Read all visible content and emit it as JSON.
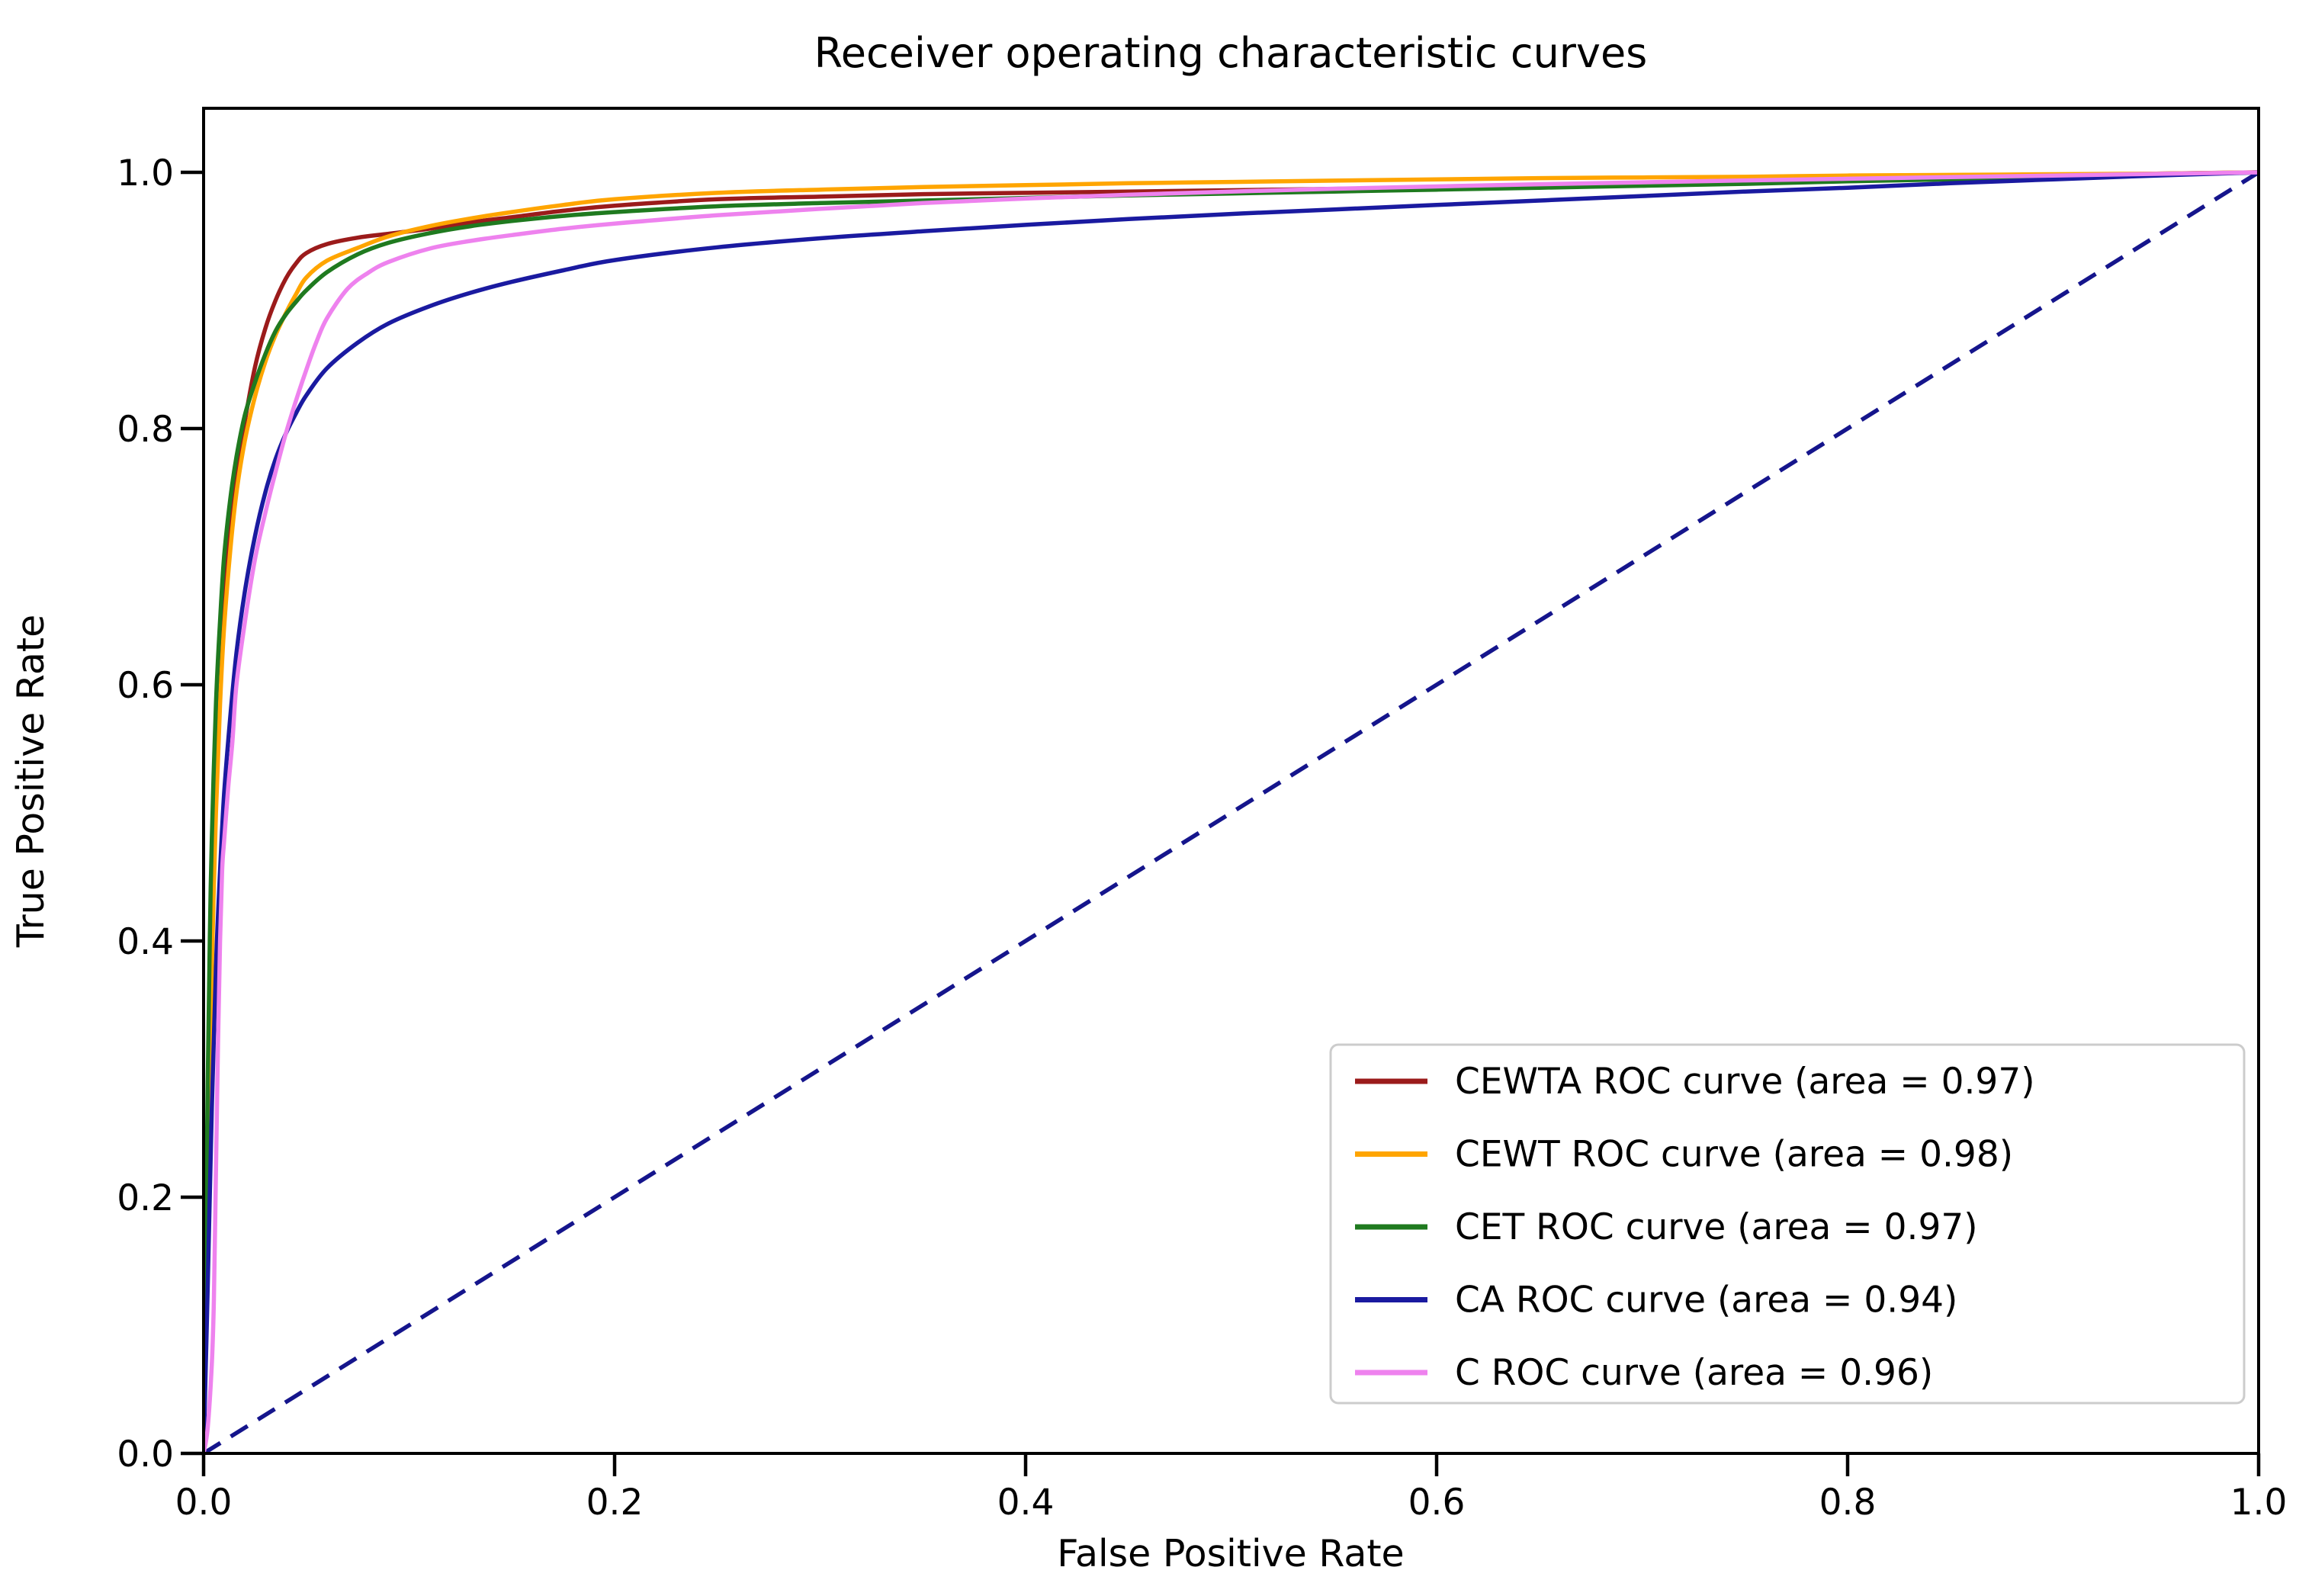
{
  "chart_data": {
    "type": "line",
    "title": "Receiver operating characteristic curves",
    "xlabel": "False Positive Rate",
    "ylabel": "True Positive Rate",
    "xlim": [
      0,
      1
    ],
    "ylim": [
      0,
      1.05
    ],
    "xticks": [
      0.0,
      0.2,
      0.4,
      0.6,
      0.8,
      1.0
    ],
    "yticks": [
      0.0,
      0.2,
      0.4,
      0.6,
      0.8,
      1.0
    ],
    "grid": false,
    "background": "#ffffff",
    "text_color": "#000000",
    "legend": {
      "position": "lower right",
      "border_color": "#cccccc",
      "fill": "#ffffff"
    },
    "reference_line": {
      "from": [
        0,
        0
      ],
      "to": [
        1,
        1
      ],
      "style": "dashed",
      "color": "#15158c"
    },
    "series": [
      {
        "name": "CEWTA ROC curve (area = 0.97)",
        "auc": 0.97,
        "color": "#9b1b1b",
        "points": [
          [
            0,
            0
          ],
          [
            0.001,
            0.12
          ],
          [
            0.002,
            0.25
          ],
          [
            0.003,
            0.36
          ],
          [
            0.004,
            0.44
          ],
          [
            0.006,
            0.55
          ],
          [
            0.008,
            0.62
          ],
          [
            0.01,
            0.675
          ],
          [
            0.013,
            0.725
          ],
          [
            0.016,
            0.765
          ],
          [
            0.02,
            0.805
          ],
          [
            0.025,
            0.848
          ],
          [
            0.03,
            0.878
          ],
          [
            0.035,
            0.9
          ],
          [
            0.04,
            0.917
          ],
          [
            0.045,
            0.929
          ],
          [
            0.05,
            0.937
          ],
          [
            0.06,
            0.944
          ],
          [
            0.075,
            0.949
          ],
          [
            0.09,
            0.952
          ],
          [
            0.11,
            0.956
          ],
          [
            0.13,
            0.961
          ],
          [
            0.15,
            0.965
          ],
          [
            0.175,
            0.97
          ],
          [
            0.2,
            0.974
          ],
          [
            0.25,
            0.979
          ],
          [
            0.3,
            0.981
          ],
          [
            0.35,
            0.983
          ],
          [
            0.4,
            0.984
          ],
          [
            0.45,
            0.985
          ],
          [
            0.5,
            0.986
          ],
          [
            0.55,
            0.987
          ],
          [
            0.6,
            0.9885
          ],
          [
            0.65,
            0.99
          ],
          [
            0.7,
            0.9915
          ],
          [
            0.75,
            0.993
          ],
          [
            0.8,
            0.9945
          ],
          [
            0.85,
            0.996
          ],
          [
            0.9,
            0.9975
          ],
          [
            0.95,
            0.999
          ],
          [
            1,
            1
          ]
        ]
      },
      {
        "name": "CEWT ROC curve (area = 0.98)",
        "auc": 0.98,
        "color": "#ffa500",
        "points": [
          [
            0,
            0
          ],
          [
            0.001,
            0.09
          ],
          [
            0.002,
            0.2
          ],
          [
            0.003,
            0.3
          ],
          [
            0.004,
            0.38
          ],
          [
            0.006,
            0.5
          ],
          [
            0.008,
            0.585
          ],
          [
            0.01,
            0.645
          ],
          [
            0.013,
            0.705
          ],
          [
            0.016,
            0.75
          ],
          [
            0.02,
            0.79
          ],
          [
            0.025,
            0.825
          ],
          [
            0.03,
            0.852
          ],
          [
            0.035,
            0.873
          ],
          [
            0.04,
            0.89
          ],
          [
            0.045,
            0.905
          ],
          [
            0.05,
            0.918
          ],
          [
            0.06,
            0.931
          ],
          [
            0.075,
            0.941
          ],
          [
            0.09,
            0.95
          ],
          [
            0.11,
            0.958
          ],
          [
            0.13,
            0.964
          ],
          [
            0.15,
            0.969
          ],
          [
            0.175,
            0.9745
          ],
          [
            0.2,
            0.979
          ],
          [
            0.25,
            0.984
          ],
          [
            0.3,
            0.9865
          ],
          [
            0.35,
            0.9885
          ],
          [
            0.4,
            0.99
          ],
          [
            0.45,
            0.9915
          ],
          [
            0.5,
            0.9925
          ],
          [
            0.55,
            0.9935
          ],
          [
            0.6,
            0.9945
          ],
          [
            0.65,
            0.9955
          ],
          [
            0.7,
            0.996
          ],
          [
            0.75,
            0.9965
          ],
          [
            0.8,
            0.9975
          ],
          [
            0.85,
            0.998
          ],
          [
            0.9,
            0.9985
          ],
          [
            0.95,
            0.999
          ],
          [
            1,
            1
          ]
        ]
      },
      {
        "name": "CET ROC curve (area = 0.97)",
        "auc": 0.97,
        "color": "#1f7a1f",
        "points": [
          [
            0,
            0
          ],
          [
            0.001,
            0.14
          ],
          [
            0.002,
            0.29
          ],
          [
            0.003,
            0.4
          ],
          [
            0.004,
            0.48
          ],
          [
            0.006,
            0.585
          ],
          [
            0.008,
            0.65
          ],
          [
            0.01,
            0.7
          ],
          [
            0.013,
            0.745
          ],
          [
            0.016,
            0.778
          ],
          [
            0.02,
            0.81
          ],
          [
            0.025,
            0.836
          ],
          [
            0.03,
            0.858
          ],
          [
            0.035,
            0.876
          ],
          [
            0.04,
            0.889
          ],
          [
            0.045,
            0.899
          ],
          [
            0.05,
            0.908
          ],
          [
            0.06,
            0.922
          ],
          [
            0.075,
            0.936
          ],
          [
            0.09,
            0.945
          ],
          [
            0.11,
            0.9525
          ],
          [
            0.13,
            0.958
          ],
          [
            0.15,
            0.962
          ],
          [
            0.175,
            0.966
          ],
          [
            0.2,
            0.969
          ],
          [
            0.25,
            0.9735
          ],
          [
            0.3,
            0.976
          ],
          [
            0.35,
            0.978
          ],
          [
            0.4,
            0.98
          ],
          [
            0.45,
            0.982
          ],
          [
            0.5,
            0.9835
          ],
          [
            0.55,
            0.985
          ],
          [
            0.6,
            0.9865
          ],
          [
            0.65,
            0.988
          ],
          [
            0.7,
            0.9895
          ],
          [
            0.75,
            0.991
          ],
          [
            0.8,
            0.993
          ],
          [
            0.85,
            0.9945
          ],
          [
            0.9,
            0.996
          ],
          [
            0.95,
            0.998
          ],
          [
            1,
            1
          ]
        ]
      },
      {
        "name": "CA ROC curve (area = 0.94)",
        "auc": 0.94,
        "color": "#1a1aa0",
        "points": [
          [
            0,
            0
          ],
          [
            0.002,
            0.13
          ],
          [
            0.004,
            0.27
          ],
          [
            0.006,
            0.38
          ],
          [
            0.008,
            0.455
          ],
          [
            0.01,
            0.515
          ],
          [
            0.013,
            0.575
          ],
          [
            0.016,
            0.625
          ],
          [
            0.02,
            0.672
          ],
          [
            0.025,
            0.716
          ],
          [
            0.03,
            0.75
          ],
          [
            0.035,
            0.776
          ],
          [
            0.04,
            0.796
          ],
          [
            0.045,
            0.812
          ],
          [
            0.05,
            0.826
          ],
          [
            0.06,
            0.847
          ],
          [
            0.075,
            0.867
          ],
          [
            0.09,
            0.882
          ],
          [
            0.11,
            0.8955
          ],
          [
            0.13,
            0.906
          ],
          [
            0.15,
            0.9145
          ],
          [
            0.175,
            0.9235
          ],
          [
            0.2,
            0.9315
          ],
          [
            0.25,
            0.9415
          ],
          [
            0.3,
            0.9485
          ],
          [
            0.35,
            0.954
          ],
          [
            0.4,
            0.959
          ],
          [
            0.45,
            0.9635
          ],
          [
            0.5,
            0.9675
          ],
          [
            0.55,
            0.971
          ],
          [
            0.6,
            0.9745
          ],
          [
            0.65,
            0.978
          ],
          [
            0.7,
            0.9815
          ],
          [
            0.75,
            0.985
          ],
          [
            0.8,
            0.988
          ],
          [
            0.85,
            0.9915
          ],
          [
            0.9,
            0.9945
          ],
          [
            0.95,
            0.9975
          ],
          [
            1,
            1
          ]
        ]
      },
      {
        "name": "C ROC curve (area = 0.96)",
        "auc": 0.96,
        "color": "#ee82ee",
        "points": [
          [
            0,
            0
          ],
          [
            0.002,
            0.02
          ],
          [
            0.004,
            0.07
          ],
          [
            0.005,
            0.12
          ],
          [
            0.006,
            0.22
          ],
          [
            0.007,
            0.32
          ],
          [
            0.008,
            0.4
          ],
          [
            0.009,
            0.455
          ],
          [
            0.01,
            0.478
          ],
          [
            0.012,
            0.52
          ],
          [
            0.014,
            0.555
          ],
          [
            0.016,
            0.6
          ],
          [
            0.02,
            0.648
          ],
          [
            0.025,
            0.698
          ],
          [
            0.03,
            0.734
          ],
          [
            0.035,
            0.766
          ],
          [
            0.04,
            0.796
          ],
          [
            0.045,
            0.822
          ],
          [
            0.05,
            0.846
          ],
          [
            0.055,
            0.868
          ],
          [
            0.06,
            0.886
          ],
          [
            0.07,
            0.909
          ],
          [
            0.08,
            0.9215
          ],
          [
            0.09,
            0.93
          ],
          [
            0.11,
            0.9405
          ],
          [
            0.13,
            0.9465
          ],
          [
            0.15,
            0.951
          ],
          [
            0.175,
            0.956
          ],
          [
            0.2,
            0.96
          ],
          [
            0.25,
            0.9665
          ],
          [
            0.3,
            0.9715
          ],
          [
            0.35,
            0.976
          ],
          [
            0.4,
            0.9795
          ],
          [
            0.45,
            0.9825
          ],
          [
            0.5,
            0.985
          ],
          [
            0.55,
            0.9872
          ],
          [
            0.6,
            0.989
          ],
          [
            0.65,
            0.9907
          ],
          [
            0.7,
            0.9922
          ],
          [
            0.75,
            0.9937
          ],
          [
            0.8,
            0.995
          ],
          [
            0.85,
            0.9963
          ],
          [
            0.9,
            0.9975
          ],
          [
            0.95,
            0.9988
          ],
          [
            1,
            1
          ]
        ]
      }
    ]
  }
}
